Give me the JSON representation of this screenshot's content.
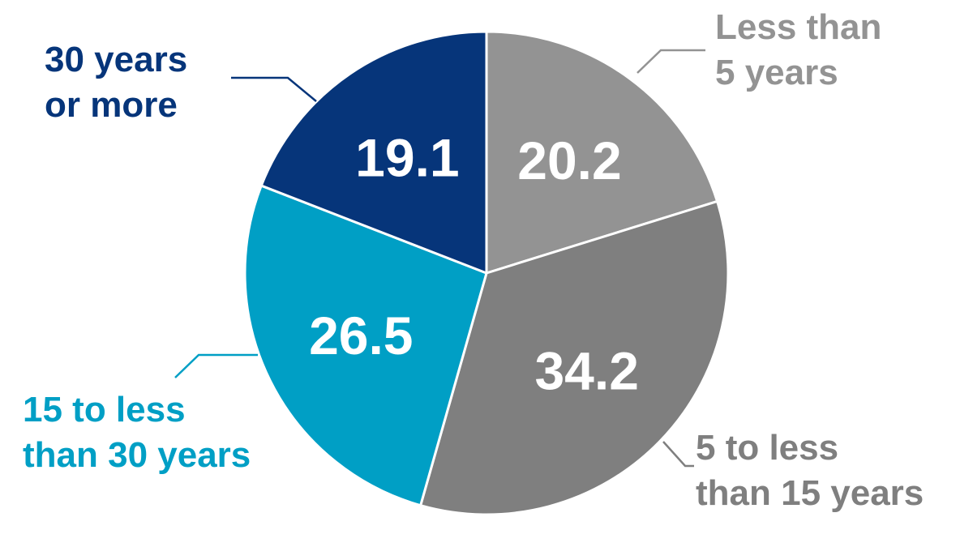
{
  "chart_data": {
    "type": "pie",
    "slices": [
      {
        "label_lines": [
          "Less than",
          "5 years"
        ],
        "value": 20.2,
        "value_text": "20.2",
        "color": "#939393"
      },
      {
        "label_lines": [
          "5 to less",
          "than 15 years"
        ],
        "value": 34.2,
        "value_text": "34.2",
        "color": "#7f7f7f"
      },
      {
        "label_lines": [
          "15 to less",
          "than 30 years"
        ],
        "value": 26.5,
        "value_text": "26.5",
        "color": "#009fc5"
      },
      {
        "label_lines": [
          "30 years",
          "or more"
        ],
        "value": 19.1,
        "value_text": "19.1",
        "color": "#06357a"
      }
    ],
    "start": "12 o'clock",
    "direction": "clockwise"
  }
}
